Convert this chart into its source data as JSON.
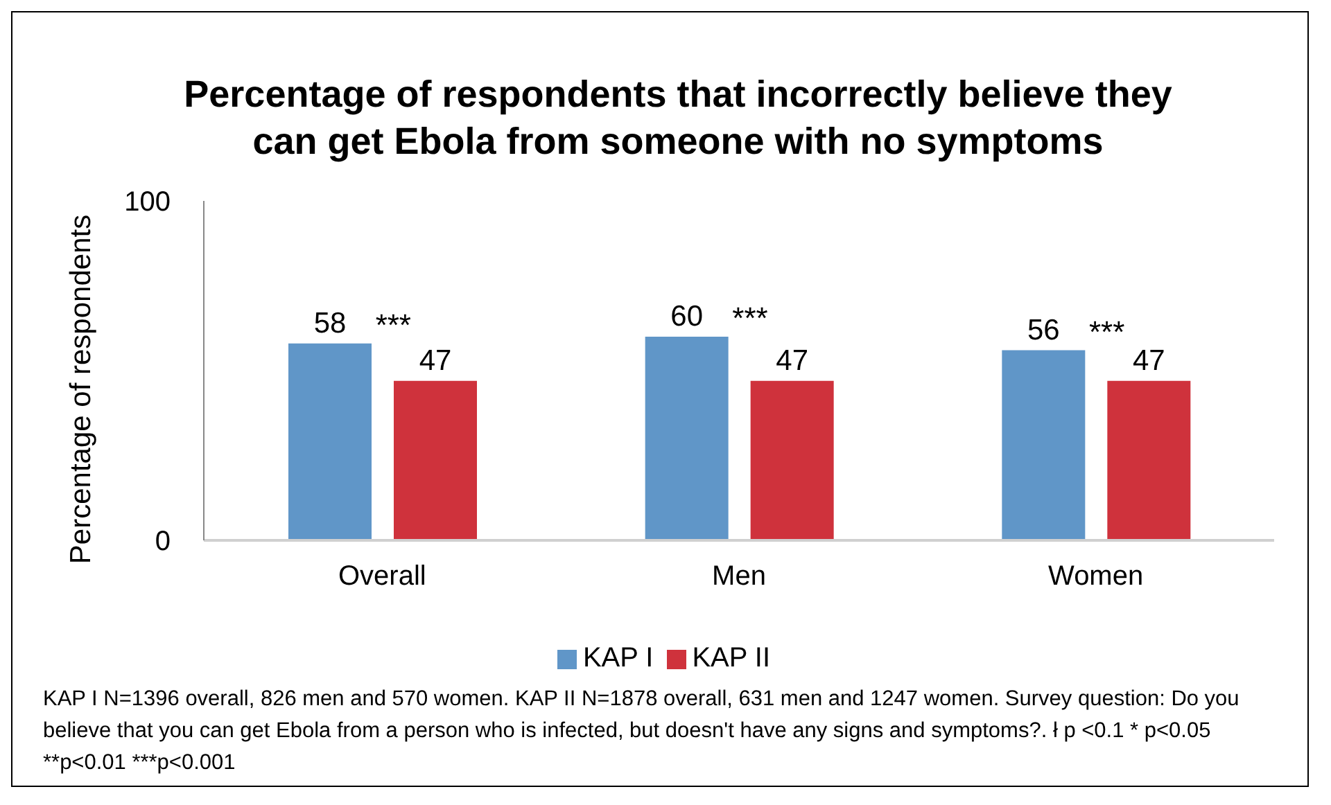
{
  "chart_data": {
    "type": "bar",
    "title": "Percentage of respondents that incorrectly believe they can get Ebola from someone with no symptoms",
    "ylabel": "Percentage of respondents",
    "categories": [
      "Overall",
      "Men",
      "Women"
    ],
    "series": [
      {
        "name": "KAP I",
        "color": "#6096c8",
        "values": [
          58,
          60,
          56
        ]
      },
      {
        "name": "KAP II",
        "color": "#cf323c",
        "values": [
          47,
          47,
          47
        ]
      }
    ],
    "ylim": [
      0,
      100
    ],
    "yticks": [
      0,
      100
    ],
    "grid": false,
    "legend": "bottom",
    "data_labels": true,
    "annotations": [
      "***",
      "***",
      "***",
      "KAP I N=1396 overall, 826 men and 570 women. KAP II N=1878 overall, 631 men and 1247 women. Survey question: Do you believe that you can get Ebola from a person who is infected, but doesn't have any signs and symptoms?.  ł p <0.1 * p<0.05 **p<0.01 ***p<0.001"
    ]
  }
}
